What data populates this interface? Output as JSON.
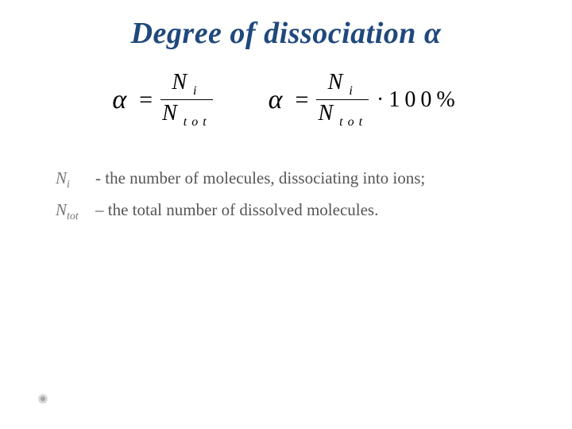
{
  "title": "Degree of dissociation α",
  "formulas": {
    "left": {
      "lhs": "α",
      "eq": "=",
      "num_main": "N",
      "num_sub": "i",
      "den_main": "N",
      "den_sub": "tot"
    },
    "right": {
      "lhs": "α",
      "eq": "=",
      "num_main": "N",
      "num_sub": "i",
      "den_main": "N",
      "den_sub": "tot",
      "tail": "·100%"
    }
  },
  "definitions": [
    {
      "sym_main": "N",
      "sym_sub": "i",
      "text": "- the number of molecules, dissociating into ions;"
    },
    {
      "sym_main": "N",
      "sym_sub": "tot",
      "text": "– the total number of dissolved molecules."
    }
  ],
  "colors": {
    "title": "#1f497d",
    "text": "#000000",
    "def_sym": "#777777",
    "def_text": "#555555",
    "background": "#ffffff",
    "bullet_outer": "#d9d9d9",
    "bullet_inner": "#a6a6a6"
  },
  "fonts": {
    "title_size_pt": 28,
    "formula_size_pt": 24,
    "def_size_pt": 16,
    "family": "Times New Roman"
  }
}
